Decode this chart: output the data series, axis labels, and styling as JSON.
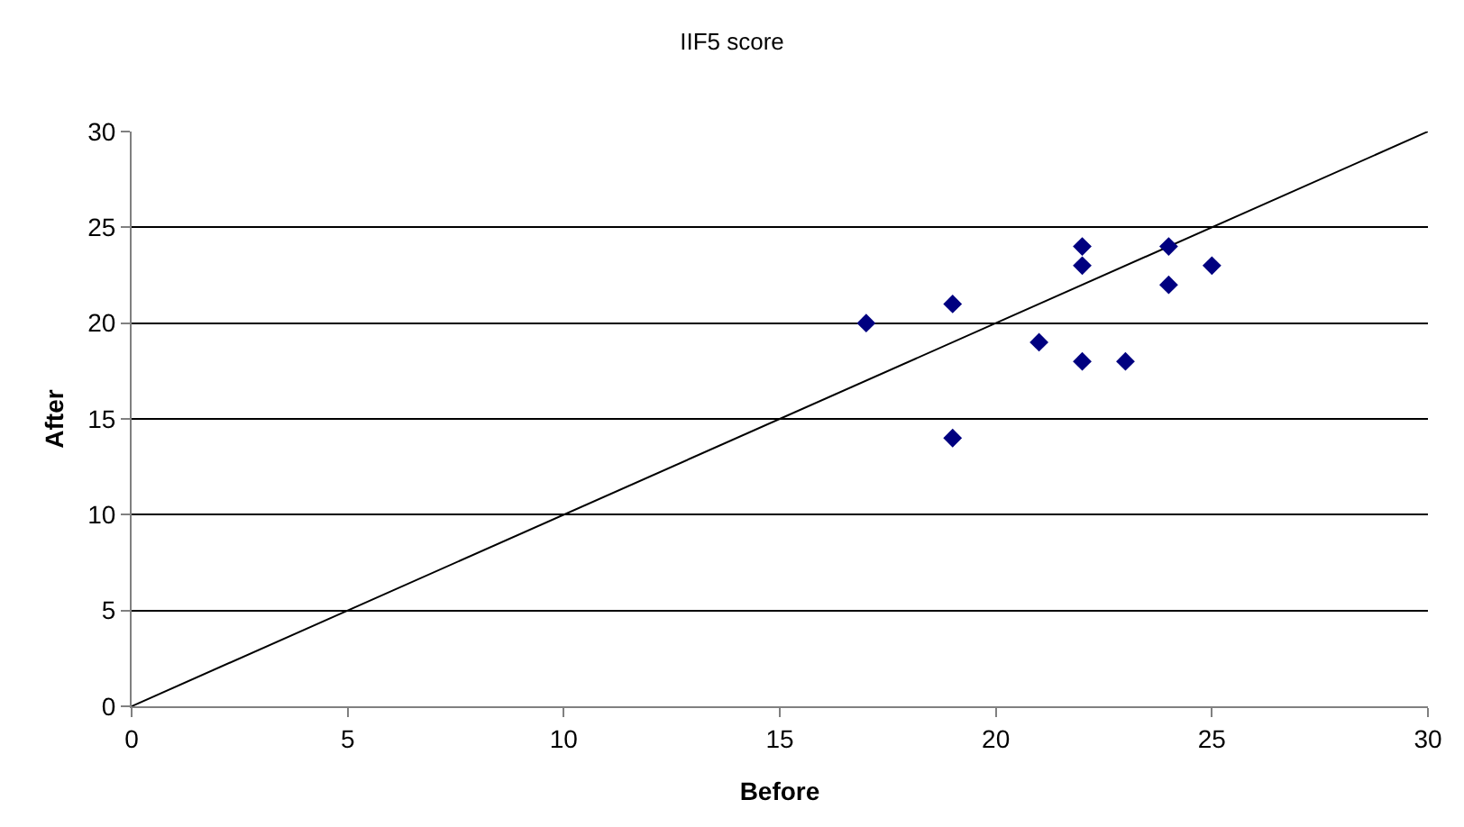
{
  "chart_data": {
    "type": "scatter",
    "title": "IIF5 score",
    "xlabel": "Before",
    "ylabel": "After",
    "xlim": [
      0,
      30
    ],
    "xticks": [
      0,
      5,
      10,
      15,
      20,
      25,
      30
    ],
    "ylim": [
      0,
      30
    ],
    "yticks": [
      0,
      5,
      10,
      15,
      20,
      25,
      30
    ],
    "grid": "y",
    "marker": "diamond",
    "series": [
      {
        "color": "#000080",
        "x": [
          17,
          19,
          19,
          21,
          22,
          22,
          22,
          23,
          24,
          24,
          25
        ],
        "values": [
          20,
          21,
          14,
          19,
          24,
          23,
          18,
          18,
          24,
          22,
          23
        ]
      },
      {
        "type": "line",
        "color": "#000000",
        "marker": "none",
        "line_style": "solid",
        "x": [
          0,
          30
        ],
        "values": [
          0,
          30
        ]
      }
    ]
  }
}
